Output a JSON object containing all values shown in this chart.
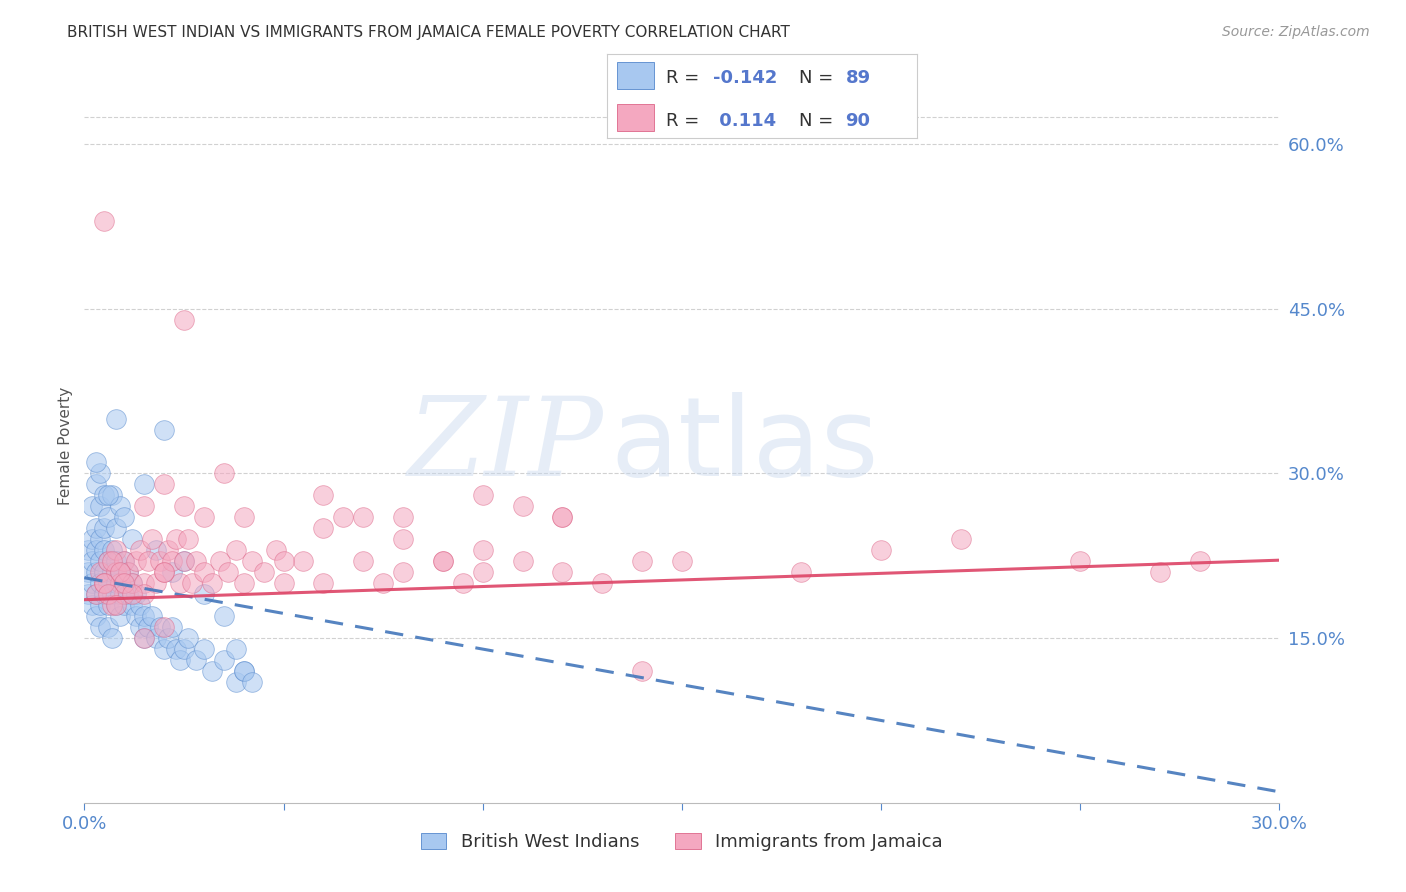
{
  "title": "BRITISH WEST INDIAN VS IMMIGRANTS FROM JAMAICA FEMALE POVERTY CORRELATION CHART",
  "source": "Source: ZipAtlas.com",
  "ylabel": "Female Poverty",
  "watermark_zip": "ZIP",
  "watermark_atlas": "atlas",
  "x_min": 0.0,
  "x_max": 0.3,
  "y_min": 0.0,
  "y_max": 0.65,
  "y_ticks_right": [
    0.15,
    0.3,
    0.45,
    0.6
  ],
  "y_tick_labels_right": [
    "15.0%",
    "30.0%",
    "45.0%",
    "60.0%"
  ],
  "legend_label1": "British West Indians",
  "legend_label2": "Immigrants from Jamaica",
  "blue_color": "#A8C8F0",
  "pink_color": "#F4A8C0",
  "blue_edge_color": "#5588CC",
  "pink_edge_color": "#DD6688",
  "blue_line_color": "#4477BB",
  "pink_line_color": "#DD4466",
  "legend_text_color": "#5577CC",
  "axis_label_color": "#5588CC",
  "grid_color": "#CCCCCC",
  "title_color": "#333333",
  "source_color": "#999999",
  "blue_x": [
    0.001,
    0.001,
    0.001,
    0.002,
    0.002,
    0.002,
    0.002,
    0.003,
    0.003,
    0.003,
    0.003,
    0.003,
    0.004,
    0.004,
    0.004,
    0.004,
    0.004,
    0.005,
    0.005,
    0.005,
    0.005,
    0.006,
    0.006,
    0.006,
    0.006,
    0.007,
    0.007,
    0.007,
    0.007,
    0.008,
    0.008,
    0.008,
    0.009,
    0.009,
    0.009,
    0.01,
    0.01,
    0.01,
    0.011,
    0.011,
    0.012,
    0.012,
    0.013,
    0.013,
    0.014,
    0.014,
    0.015,
    0.015,
    0.016,
    0.017,
    0.018,
    0.019,
    0.02,
    0.021,
    0.022,
    0.023,
    0.024,
    0.025,
    0.026,
    0.028,
    0.03,
    0.032,
    0.035,
    0.038,
    0.04,
    0.002,
    0.003,
    0.004,
    0.005,
    0.006,
    0.007,
    0.008,
    0.009,
    0.01,
    0.012,
    0.015,
    0.018,
    0.022,
    0.025,
    0.03,
    0.035,
    0.038,
    0.04,
    0.042,
    0.02,
    0.008,
    0.006,
    0.004,
    0.003
  ],
  "blue_y": [
    0.19,
    0.21,
    0.23,
    0.18,
    0.2,
    0.22,
    0.24,
    0.17,
    0.19,
    0.21,
    0.23,
    0.25,
    0.18,
    0.2,
    0.22,
    0.24,
    0.16,
    0.19,
    0.21,
    0.23,
    0.25,
    0.18,
    0.2,
    0.22,
    0.16,
    0.19,
    0.21,
    0.23,
    0.15,
    0.18,
    0.2,
    0.22,
    0.19,
    0.21,
    0.17,
    0.18,
    0.2,
    0.22,
    0.19,
    0.21,
    0.18,
    0.2,
    0.17,
    0.19,
    0.16,
    0.18,
    0.15,
    0.17,
    0.16,
    0.17,
    0.15,
    0.16,
    0.14,
    0.15,
    0.16,
    0.14,
    0.13,
    0.14,
    0.15,
    0.13,
    0.14,
    0.12,
    0.13,
    0.11,
    0.12,
    0.27,
    0.29,
    0.27,
    0.28,
    0.26,
    0.28,
    0.25,
    0.27,
    0.26,
    0.24,
    0.29,
    0.23,
    0.21,
    0.22,
    0.19,
    0.17,
    0.14,
    0.12,
    0.11,
    0.34,
    0.35,
    0.28,
    0.3,
    0.31
  ],
  "pink_x": [
    0.003,
    0.004,
    0.005,
    0.005,
    0.006,
    0.007,
    0.008,
    0.008,
    0.009,
    0.01,
    0.01,
    0.011,
    0.012,
    0.013,
    0.014,
    0.015,
    0.016,
    0.017,
    0.018,
    0.019,
    0.02,
    0.021,
    0.022,
    0.023,
    0.024,
    0.025,
    0.026,
    0.027,
    0.028,
    0.03,
    0.032,
    0.034,
    0.036,
    0.038,
    0.04,
    0.042,
    0.045,
    0.048,
    0.05,
    0.055,
    0.06,
    0.065,
    0.07,
    0.075,
    0.08,
    0.09,
    0.095,
    0.1,
    0.11,
    0.12,
    0.13,
    0.14,
    0.015,
    0.02,
    0.025,
    0.03,
    0.035,
    0.04,
    0.05,
    0.06,
    0.07,
    0.08,
    0.09,
    0.1,
    0.11,
    0.12,
    0.15,
    0.18,
    0.2,
    0.22,
    0.25,
    0.27,
    0.28,
    0.015,
    0.02,
    0.025,
    0.06,
    0.08,
    0.1,
    0.12,
    0.14,
    0.005,
    0.006,
    0.007,
    0.008,
    0.009,
    0.01,
    0.012,
    0.015,
    0.02
  ],
  "pink_y": [
    0.19,
    0.21,
    0.53,
    0.2,
    0.22,
    0.18,
    0.21,
    0.23,
    0.2,
    0.22,
    0.19,
    0.21,
    0.2,
    0.22,
    0.23,
    0.2,
    0.22,
    0.24,
    0.2,
    0.22,
    0.21,
    0.23,
    0.22,
    0.24,
    0.2,
    0.22,
    0.24,
    0.2,
    0.22,
    0.21,
    0.2,
    0.22,
    0.21,
    0.23,
    0.2,
    0.22,
    0.21,
    0.23,
    0.2,
    0.22,
    0.28,
    0.26,
    0.22,
    0.2,
    0.21,
    0.22,
    0.2,
    0.21,
    0.22,
    0.21,
    0.2,
    0.22,
    0.27,
    0.29,
    0.27,
    0.26,
    0.3,
    0.26,
    0.22,
    0.25,
    0.26,
    0.24,
    0.22,
    0.23,
    0.27,
    0.26,
    0.22,
    0.21,
    0.23,
    0.24,
    0.22,
    0.21,
    0.22,
    0.19,
    0.21,
    0.44,
    0.2,
    0.26,
    0.28,
    0.26,
    0.12,
    0.2,
    0.19,
    0.22,
    0.18,
    0.21,
    0.2,
    0.19,
    0.15,
    0.16
  ]
}
